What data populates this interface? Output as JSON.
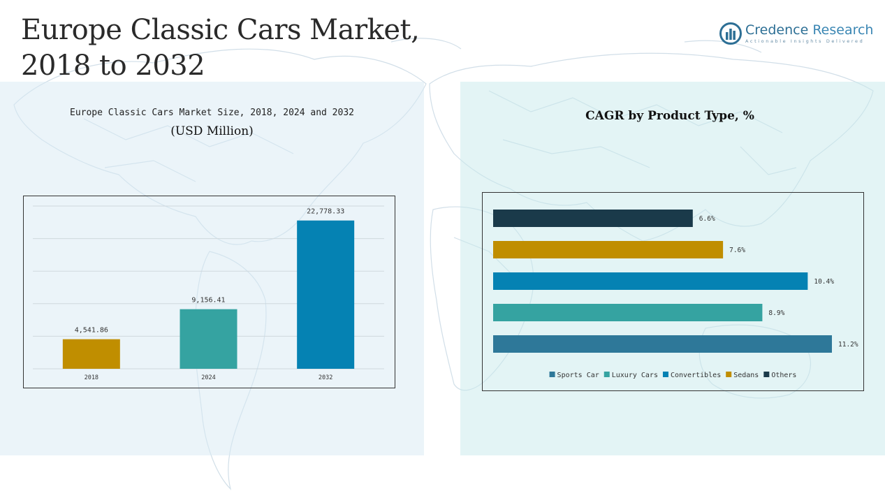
{
  "page": {
    "title_line1": "Europe Classic Cars Market,",
    "title_line2": "2018 to 2032"
  },
  "logo": {
    "name_part1": "Credence",
    "name_part2": " Research",
    "tagline": "Actionable Insights Delivered"
  },
  "chart_data": [
    {
      "type": "bar",
      "title": "Europe Classic Cars Market Size, 2018, 2024 and 2032",
      "subtitle": "(USD Million)",
      "categories": [
        "2018",
        "2024",
        "2032"
      ],
      "values": [
        4541.86,
        9156.41,
        22778.33
      ],
      "value_labels": [
        "4,541.86",
        "9,156.41",
        "22,778.33"
      ],
      "colors": [
        "#c08e00",
        "#35a3a1",
        "#0582b3"
      ],
      "ylim": [
        0,
        25000
      ],
      "grid": true,
      "legend": "none"
    },
    {
      "type": "bar",
      "orientation": "horizontal",
      "title": "CAGR by Product Type, %",
      "categories": [
        "Others",
        "Sedans",
        "Convertibles",
        "Luxury Cars",
        "Sports Car"
      ],
      "values": [
        6.6,
        7.6,
        10.4,
        8.9,
        11.2
      ],
      "value_labels": [
        "6.6%",
        "7.6%",
        "10.4%",
        "8.9%",
        "11.2%"
      ],
      "colors": [
        "#1a3a4a",
        "#c08e00",
        "#0582b3",
        "#35a3a1",
        "#2e7899"
      ],
      "legend_order": [
        "Sports Car",
        "Luxury Cars",
        "Convertibles",
        "Sedans",
        "Others"
      ],
      "legend_colors": [
        "#2e7899",
        "#35a3a1",
        "#0582b3",
        "#c08e00",
        "#1a3a4a"
      ],
      "xlim": [
        0,
        11.5
      ],
      "legend": "bottom",
      "grid": false
    }
  ]
}
